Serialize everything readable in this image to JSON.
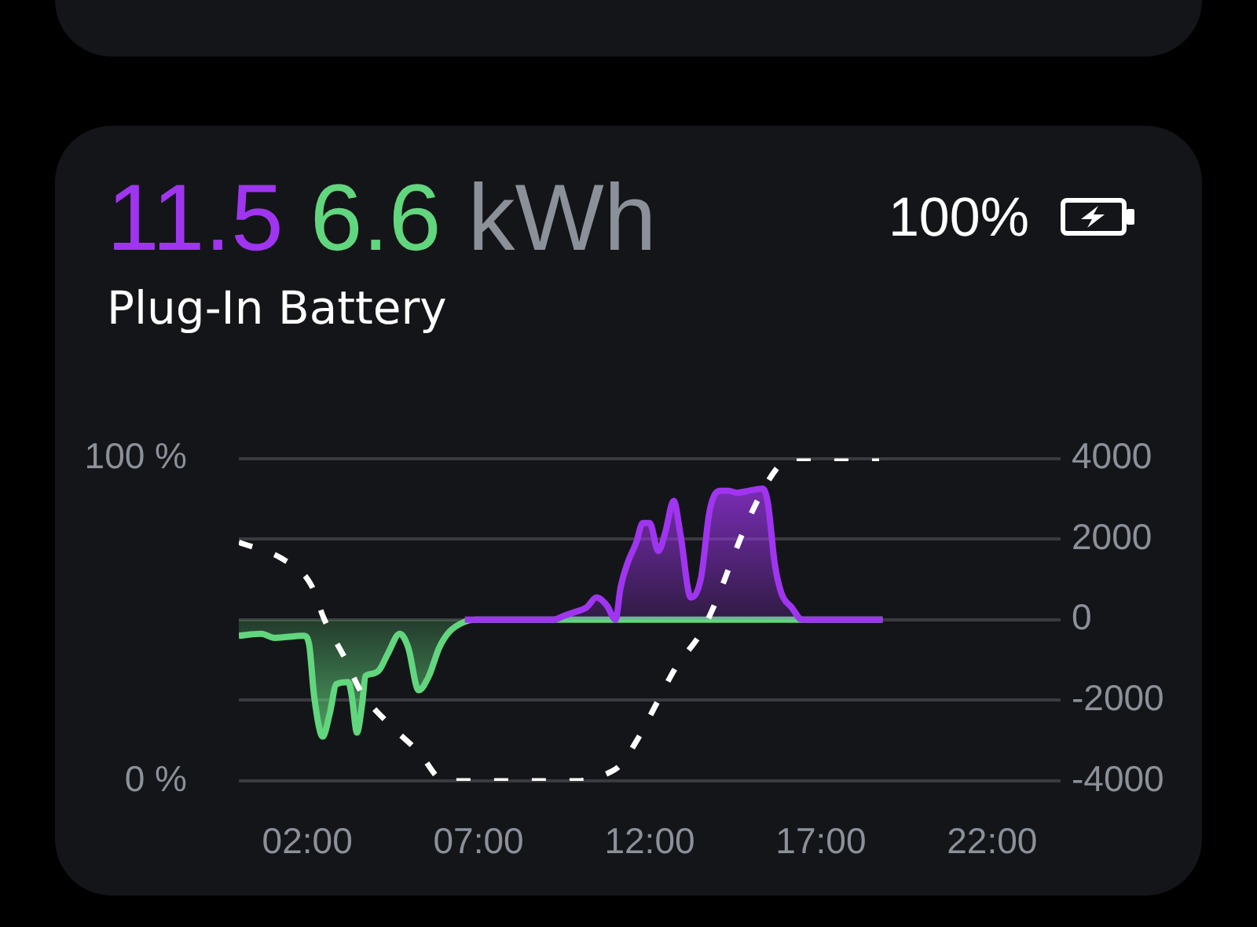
{
  "chart_data": {
    "type": "area",
    "title": "Plug-In Battery",
    "annotations": [
      "11.5",
      "6.6",
      "kWh",
      "100%"
    ],
    "xlim": [
      0,
      24
    ],
    "xticks": [
      {
        "value": 2,
        "label": "02:00"
      },
      {
        "value": 7,
        "label": "07:00"
      },
      {
        "value": 12,
        "label": "12:00"
      },
      {
        "value": 17,
        "label": "17:00"
      },
      {
        "value": 22,
        "label": "22:00"
      }
    ],
    "ylim": [
      0,
      100
    ],
    "yticks": [
      {
        "value": 0,
        "label": "0 %"
      },
      {
        "value": 100,
        "label": "100 %"
      }
    ],
    "y2lim": [
      -4000,
      4000
    ],
    "y2ticks": [
      -4000,
      -2000,
      0,
      2000,
      4000
    ],
    "grid": "y",
    "series": [
      {
        "axis": "y2",
        "color": "#a035f0",
        "x": [
          6.6,
          9.2,
          9.5,
          9.85,
          10.15,
          10.45,
          10.75,
          11.0,
          11.15,
          11.35,
          11.6,
          11.8,
          12.0,
          12.25,
          12.45,
          12.7,
          12.9,
          13.2,
          13.5,
          13.75,
          14.05,
          14.3,
          14.55,
          14.9,
          15.3,
          15.45,
          15.65,
          15.85,
          16.15,
          16.45,
          18.8
        ],
        "values": [
          0,
          0,
          100,
          200,
          300,
          550,
          350,
          0,
          800,
          1400,
          1900,
          2400,
          2400,
          1700,
          2150,
          2950,
          2100,
          550,
          1050,
          2700,
          3200,
          3200,
          3150,
          3200,
          3250,
          2900,
          1400,
          650,
          300,
          0,
          0
        ]
      },
      {
        "axis": "y2",
        "color": "#62d67e",
        "x": [
          0,
          0.65,
          1.05,
          1.9,
          2.05,
          2.2,
          2.45,
          2.65,
          2.85,
          3.2,
          3.3,
          3.45,
          3.6,
          3.7,
          3.85,
          4.1,
          4.35,
          4.7,
          4.95,
          5.25,
          5.55,
          5.85,
          6.15,
          6.6,
          6.9,
          18.8
        ],
        "values": [
          -400,
          -350,
          -450,
          -400,
          -600,
          -1900,
          -2900,
          -2350,
          -1600,
          -1550,
          -1900,
          -2800,
          -2100,
          -1400,
          -1350,
          -1250,
          -850,
          -350,
          -700,
          -1750,
          -1400,
          -700,
          -300,
          -50,
          0,
          0
        ]
      },
      {
        "type": "line",
        "axis": "y",
        "color": "#ffffff",
        "line_style": "dashed",
        "x": [
          0,
          1.25,
          2.1,
          2.5,
          3.1,
          3.55,
          4.35,
          5.25,
          6.0,
          8.75,
          9.85,
          10.9,
          11.15,
          11.65,
          12.2,
          12.75,
          13.5,
          13.95,
          14.35,
          14.8,
          15.35,
          15.8,
          16.1,
          18.7
        ],
        "values": [
          74,
          69,
          61,
          50,
          38,
          28,
          18,
          9,
          0,
          0,
          0,
          3,
          5,
          13,
          24,
          35,
          46,
          56,
          67,
          79,
          91,
          98,
          100,
          100
        ]
      }
    ]
  }
}
